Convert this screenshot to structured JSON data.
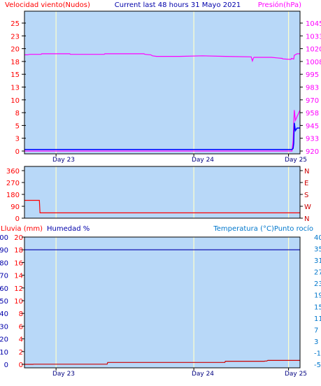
{
  "colors": {
    "plot_bg": "#B8D8F8",
    "frame": "#000000",
    "marker_line": "#FFFFCC",
    "wind": "#0000FF",
    "wind_gust": "#FF00FF",
    "pressure": "#FF00FF",
    "direction": "#FF0000",
    "humidity": "#0000AA",
    "rain": "#CC0000",
    "left_label": "#FF0000",
    "center_label": "#0000AA",
    "right_label_top": "#FF00FF",
    "right_label_bottom": "#0077CC",
    "compass_label": "#CC0000"
  },
  "chart_data": [
    {
      "type": "line",
      "title": "Current last 48 hours 31 Mayo 2021",
      "left_label": "Velocidad viento(Nudos)",
      "right_label": "Presión(hPa)",
      "x_ticks": [
        "Day 23",
        "Day 24",
        "Day 25"
      ],
      "y_left_ticks": [
        "0",
        "3",
        "5",
        "8",
        "10",
        "13",
        "15",
        "18",
        "20",
        "23",
        "25"
      ],
      "y_left_range": [
        0,
        25
      ],
      "y_right_ticks": [
        "920",
        "933",
        "945",
        "958",
        "970",
        "983",
        "995",
        "1008",
        "1020",
        "1033",
        "1045"
      ],
      "y_right_range": [
        920,
        1045
      ],
      "series": [
        {
          "role": "pressure",
          "axis": "right",
          "unit": "hPa",
          "x": [
            0.0,
            0.5,
            0.9,
            1.0,
            2.9,
            3.0,
            7.9,
            8.0,
            13.9,
            14.0,
            20.8,
            21.0,
            22.0,
            22.3,
            23.0,
            27.0,
            31.0,
            35.0,
            39.5,
            39.7,
            39.9,
            40.0,
            43.0,
            44.0,
            44.9,
            45.0,
            46.4,
            46.5,
            46.9,
            47.0,
            47.5,
            48.0
          ],
          "y": [
            1014.0,
            1014.0,
            1014.5,
            1014.5,
            1014.5,
            1015.0,
            1015.0,
            1014.5,
            1014.5,
            1015.0,
            1015.0,
            1014.5,
            1014.0,
            1013.0,
            1012.5,
            1012.5,
            1013.0,
            1012.5,
            1012.0,
            1008.0,
            1011.0,
            1011.5,
            1011.5,
            1011.0,
            1010.5,
            1010.0,
            1009.5,
            1010.5,
            1009.8,
            1013.5,
            1015.0,
            1015.0
          ]
        },
        {
          "role": "wind_speed",
          "axis": "left",
          "unit": "kn",
          "x": [
            0.0,
            46.6,
            46.8,
            46.9,
            47.0,
            47.2,
            47.5,
            48.0
          ],
          "y": [
            0.3,
            0.3,
            0.5,
            1.5,
            5.5,
            4.0,
            4.5,
            4.5
          ]
        },
        {
          "role": "wind_gust",
          "axis": "left",
          "unit": "kn",
          "x": [
            0.0,
            46.6,
            46.8,
            47.0,
            47.2,
            48.0
          ],
          "y": [
            0.0,
            0.0,
            2.0,
            8.0,
            6.0,
            8.0
          ]
        }
      ]
    },
    {
      "type": "line",
      "y_left_ticks": [
        "0",
        "90",
        "180",
        "270",
        "360"
      ],
      "y_left_range": [
        0,
        360
      ],
      "y_right_ticks": [
        "N",
        "W",
        "S",
        "E",
        "N"
      ],
      "series": [
        {
          "role": "wind_direction",
          "unit": "deg",
          "x": [
            0.0,
            2.6,
            2.7,
            48.0
          ],
          "y": [
            135,
            135,
            40,
            40
          ]
        }
      ]
    },
    {
      "type": "line",
      "left_label": "Lluvia (mm)",
      "center_label": "Humedad %",
      "right_label": "Temperatura (°C)Punto rocío",
      "x_ticks": [
        "Day 23",
        "Day 24",
        "Day 25"
      ],
      "y_left_ticks": [
        "0",
        "2",
        "4",
        "6",
        "8",
        "10",
        "12",
        "14",
        "16",
        "18",
        "20"
      ],
      "y_left_range": [
        0,
        20
      ],
      "y_humidity_ticks": [
        "0",
        "10",
        "20",
        "30",
        "40",
        "50",
        "60",
        "70",
        "80",
        "90",
        "100"
      ],
      "y_humidity_range": [
        0,
        100
      ],
      "y_right_ticks": [
        "-5",
        "-1",
        "3",
        "7",
        "11",
        "15",
        "19",
        "23",
        "27",
        "31",
        "35",
        "40"
      ],
      "series": [
        {
          "role": "humidity",
          "unit": "%",
          "x": [
            0.0,
            48.0
          ],
          "y": [
            90,
            90
          ]
        },
        {
          "role": "rain",
          "unit": "mm",
          "x": [
            0.0,
            1.5,
            1.6,
            14.4,
            14.5,
            34.9,
            35.0,
            41.8,
            41.9,
            42.2,
            42.4,
            48.0
          ],
          "y": [
            0.0,
            0.0,
            0.1,
            0.1,
            1.5,
            1.5,
            2.4,
            2.4,
            2.6,
            2.6,
            3.1,
            3.1
          ]
        }
      ]
    }
  ]
}
